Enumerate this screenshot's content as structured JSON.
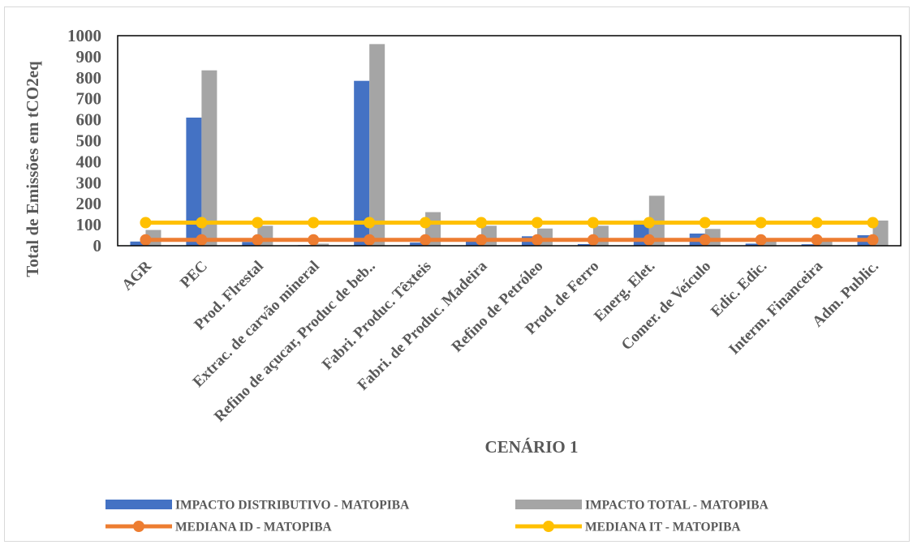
{
  "chart_data": {
    "type": "bar",
    "title": "",
    "xlabel": "CENÁRIO 1",
    "ylabel": "Total de Emissões em tCO2eq",
    "ylim": [
      0,
      1000
    ],
    "yticks": [
      0,
      100,
      200,
      300,
      400,
      500,
      600,
      700,
      800,
      900,
      1000
    ],
    "grid": false,
    "legend_position": "bottom",
    "categories": [
      "AGR",
      "PEC",
      "Prod. Flrestal",
      "Extrac. de carvão mineral",
      "Refino de açucar, Produc de beb..",
      "Fabri. Produc. Têxteis",
      "Fabri. de Produc. Madeira",
      "Refino de Petróleo",
      "Prod. de Ferro",
      "Energ. Elet.",
      "Comer. de Veículo",
      "Edic. Edic.",
      "Interm. Financeira",
      "Adm. Public."
    ],
    "series": [
      {
        "name": "IMPACTO DISTRIBUTIVO - MATOPIBA",
        "kind": "bar",
        "color": "#4472c4",
        "values": [
          20,
          610,
          18,
          3,
          785,
          15,
          20,
          45,
          8,
          120,
          58,
          10,
          7,
          50
        ]
      },
      {
        "name": "IMPACTO TOTAL - MATOPIBA",
        "kind": "bar",
        "color": "#a5a5a5",
        "values": [
          75,
          835,
          95,
          10,
          960,
          160,
          95,
          82,
          95,
          238,
          80,
          28,
          28,
          120
        ]
      },
      {
        "name": "MEDIANA ID - MATOPIBA",
        "kind": "line",
        "color": "#ed7d31",
        "values": [
          28,
          28,
          28,
          28,
          28,
          28,
          28,
          28,
          28,
          28,
          28,
          28,
          28,
          28
        ]
      },
      {
        "name": "MEDIANA IT - MATOPIBA",
        "kind": "line",
        "color": "#ffc000",
        "values": [
          110,
          110,
          110,
          110,
          110,
          110,
          110,
          110,
          110,
          110,
          110,
          110,
          110,
          110
        ]
      }
    ]
  }
}
